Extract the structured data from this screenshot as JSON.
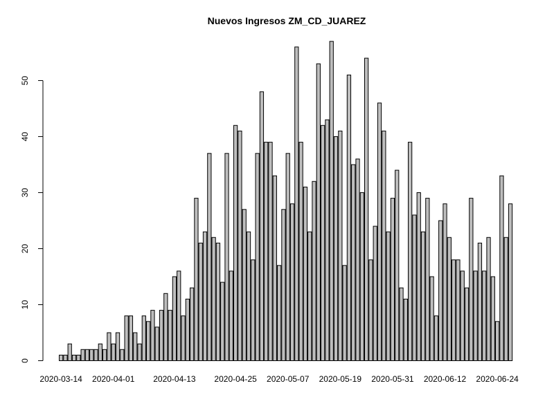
{
  "chart_data": {
    "type": "bar",
    "title": "Nuevos Ingresos ZM_CD_JUAREZ",
    "xlabel": "",
    "ylabel": "",
    "ylim": [
      0,
      57
    ],
    "y_ticks": [
      0,
      10,
      20,
      30,
      40,
      50
    ],
    "bar_color": "#bebebe",
    "grid": false,
    "start_date": "2020-03-14",
    "x_tick_labels": [
      "2020-03-14",
      "2020-04-01",
      "2020-04-13",
      "2020-04-25",
      "2020-05-07",
      "2020-05-19",
      "2020-05-31",
      "2020-06-12",
      "2020-06-24"
    ],
    "x_tick_indices": [
      0,
      12,
      26,
      40,
      52,
      64,
      76,
      88,
      100
    ],
    "values": [
      1,
      1,
      3,
      1,
      1,
      2,
      2,
      2,
      2,
      3,
      2,
      5,
      3,
      5,
      2,
      8,
      8,
      5,
      3,
      8,
      7,
      9,
      6,
      9,
      12,
      9,
      15,
      16,
      8,
      11,
      13,
      29,
      21,
      23,
      37,
      22,
      21,
      14,
      37,
      16,
      42,
      41,
      27,
      23,
      18,
      37,
      48,
      39,
      39,
      33,
      17,
      27,
      37,
      28,
      56,
      39,
      31,
      23,
      32,
      53,
      42,
      43,
      57,
      40,
      41,
      17,
      51,
      35,
      36,
      30,
      54,
      18,
      24,
      46,
      41,
      23,
      29,
      34,
      13,
      11,
      39,
      26,
      30,
      23,
      29,
      15,
      8,
      25,
      28,
      22,
      18,
      18,
      16,
      13,
      29,
      16,
      21,
      16,
      22,
      15,
      7,
      33,
      22,
      28
    ]
  }
}
